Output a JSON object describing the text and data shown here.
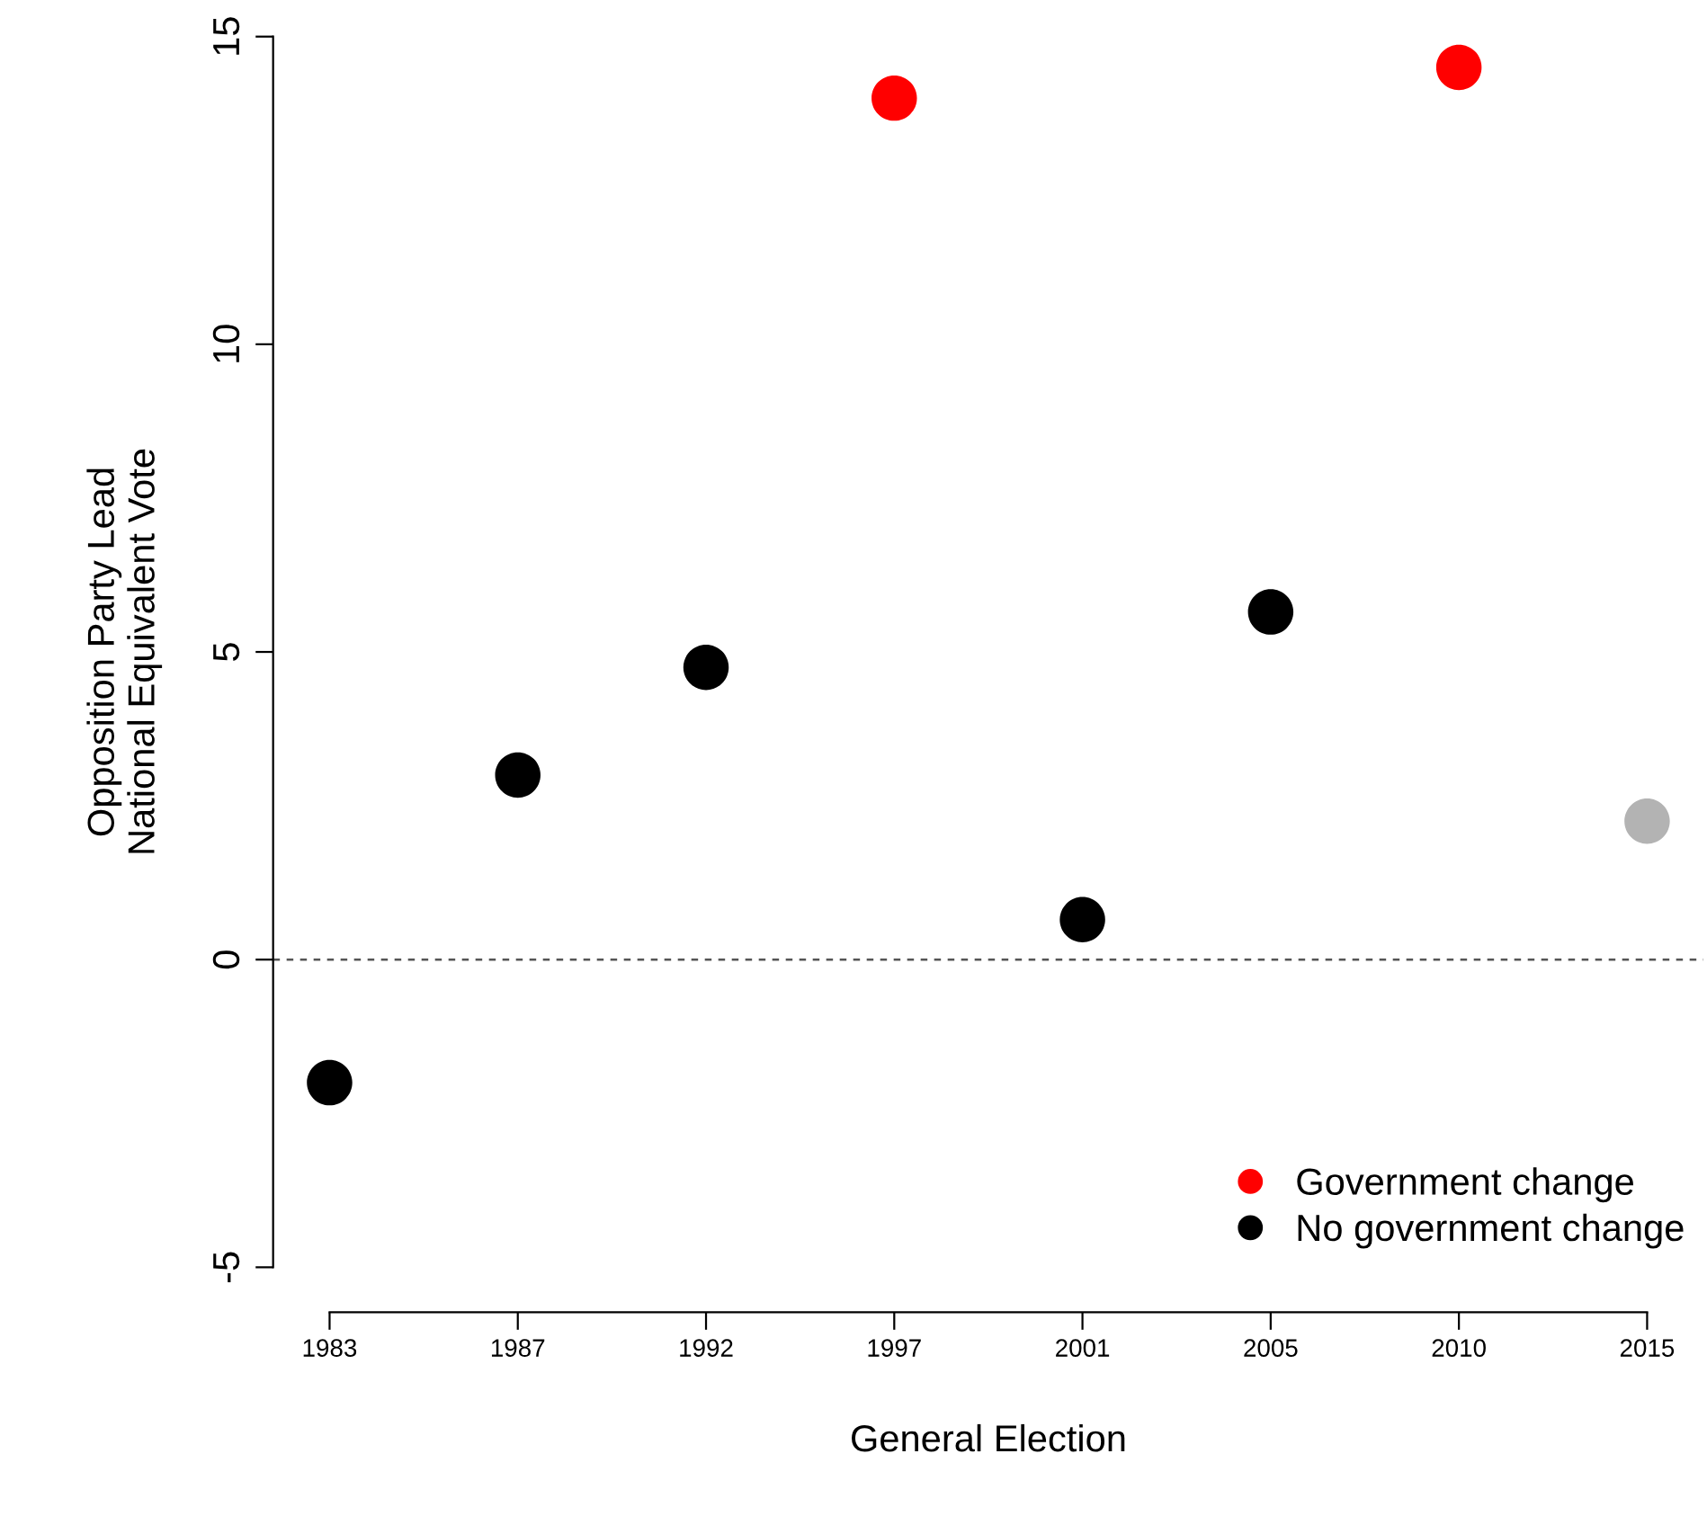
{
  "chart_data": {
    "type": "scatter",
    "xlabel": "General Election",
    "ylabel": "Opposition Party Lead\nNational Equivalent Vote",
    "categories": [
      "1983",
      "1987",
      "1992",
      "1997",
      "2001",
      "2005",
      "2010",
      "2015"
    ],
    "series": [
      {
        "name": "Government change",
        "color": "#ff0000",
        "values": [
          null,
          null,
          null,
          14.0,
          null,
          null,
          14.5,
          null
        ]
      },
      {
        "name": "No government change",
        "color": "#000000",
        "values": [
          -2.0,
          3.0,
          4.75,
          null,
          0.65,
          5.65,
          null,
          null
        ]
      },
      {
        "color": "#b3b3b3",
        "values": [
          null,
          null,
          null,
          null,
          null,
          null,
          null,
          2.25
        ]
      }
    ],
    "ylim": [
      -5,
      15
    ],
    "yticks": [
      -5,
      0,
      5,
      10,
      15
    ],
    "grid": false,
    "legend": "bottom right",
    "marker": "circle",
    "ref_lines": [
      {
        "axis": "y",
        "value": 0,
        "color": "#555555",
        "line_style": "dashed"
      }
    ]
  }
}
